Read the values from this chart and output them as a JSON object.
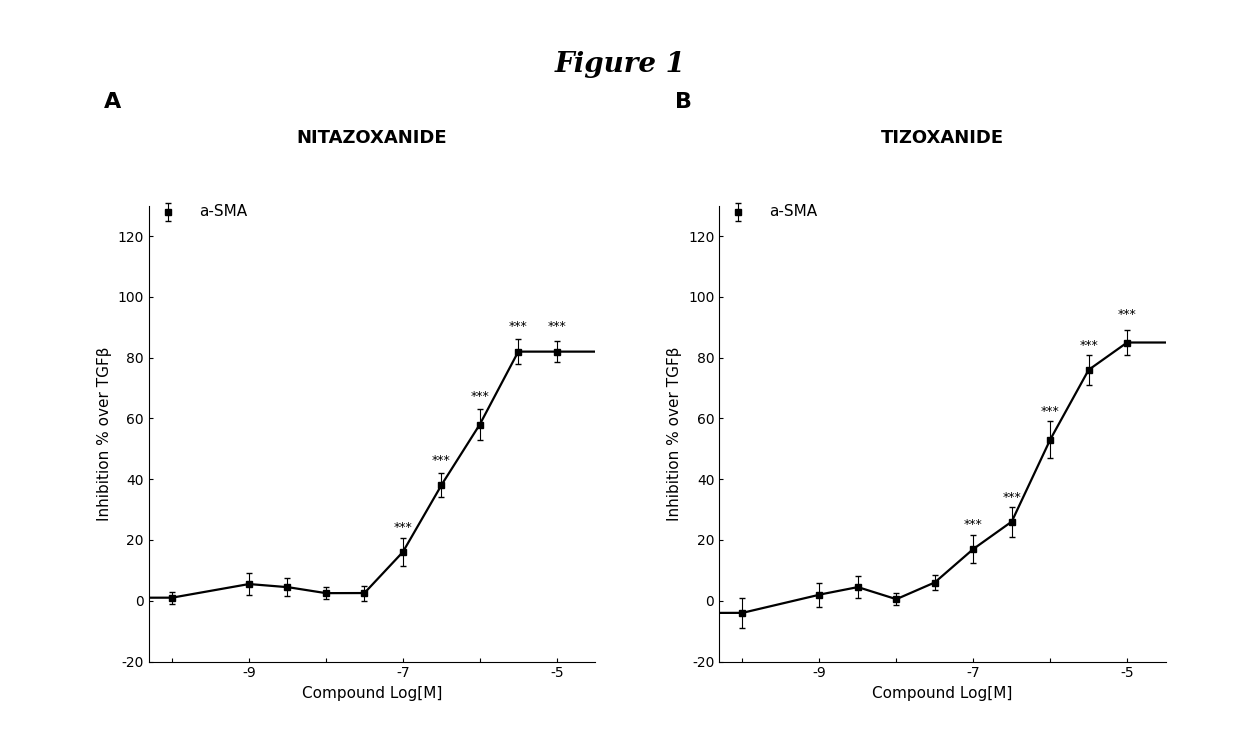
{
  "figure_title": "Figure 1",
  "panel_A": {
    "title": "NITAZOXANIDE",
    "label": "A",
    "legend_marker": "a-SMA",
    "xlabel": "Compound Log[M]",
    "ylabel": "Inhibition % over TGFβ",
    "xlim": [
      -10.3,
      -4.5
    ],
    "ylim": [
      -20,
      130
    ],
    "yticks": [
      -20,
      0,
      20,
      40,
      60,
      80,
      100,
      120
    ],
    "xtick_positions": [
      -10,
      -9,
      -8,
      -7,
      -6,
      -5
    ],
    "xtick_labels": [
      "",
      "-9",
      "",
      "-7",
      "",
      "-5"
    ],
    "x_data": [
      -10.0,
      -9.0,
      -8.5,
      -8.0,
      -7.5,
      -7.0,
      -6.5,
      -6.0,
      -5.5,
      -5.0
    ],
    "y_data": [
      1.0,
      5.5,
      4.5,
      2.5,
      2.5,
      16.0,
      38.0,
      58.0,
      82.0,
      82.0
    ],
    "y_err": [
      2.0,
      3.5,
      3.0,
      2.0,
      2.5,
      4.5,
      4.0,
      5.0,
      4.0,
      3.5
    ],
    "sig_x": [
      -7.0,
      -6.5,
      -6.0,
      -5.5,
      -5.0
    ],
    "sig_y": [
      22.0,
      44.0,
      65.0,
      88.0,
      88.0
    ],
    "sig_labels": [
      "***",
      "***",
      "***",
      "***",
      "***"
    ]
  },
  "panel_B": {
    "title": "TIZOXANIDE",
    "label": "B",
    "legend_marker": "a-SMA",
    "xlabel": "Compound Log[M]",
    "ylabel": "Inhibition % over TGFβ",
    "xlim": [
      -10.3,
      -4.5
    ],
    "ylim": [
      -20,
      130
    ],
    "yticks": [
      -20,
      0,
      20,
      40,
      60,
      80,
      100,
      120
    ],
    "xtick_positions": [
      -10,
      -9,
      -8,
      -7,
      -6,
      -5
    ],
    "xtick_labels": [
      "",
      "-9",
      "",
      "-7",
      "",
      "-5"
    ],
    "x_data": [
      -10.0,
      -9.0,
      -8.5,
      -8.0,
      -7.5,
      -7.0,
      -6.5,
      -6.0,
      -5.5,
      -5.0
    ],
    "y_data": [
      -4.0,
      2.0,
      4.5,
      0.5,
      6.0,
      17.0,
      26.0,
      53.0,
      76.0,
      85.0
    ],
    "y_err": [
      5.0,
      4.0,
      3.5,
      2.0,
      2.5,
      4.5,
      5.0,
      6.0,
      5.0,
      4.0
    ],
    "sig_x": [
      -7.0,
      -6.5,
      -6.0,
      -5.5,
      -5.0
    ],
    "sig_y": [
      23.0,
      32.0,
      60.0,
      82.0,
      92.0
    ],
    "sig_labels": [
      "***",
      "***",
      "***",
      "***",
      "***"
    ]
  },
  "bg_color": "#ffffff",
  "line_color": "#000000",
  "marker_color": "#000000",
  "marker_style": "s",
  "marker_size": 4,
  "line_width": 1.6,
  "fontsize_title": 13,
  "fontsize_label": 11,
  "fontsize_tick": 10,
  "fontsize_panel": 16,
  "fontsize_sig": 9,
  "fontsize_fig_title": 20,
  "fontsize_legend": 11
}
